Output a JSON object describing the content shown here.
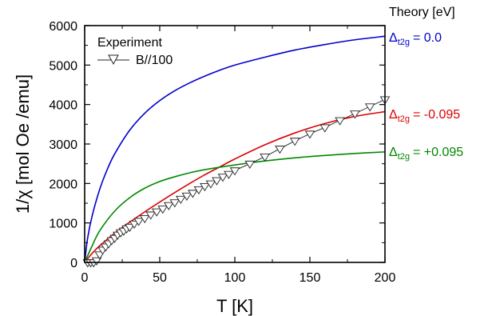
{
  "chart_data": {
    "type": "line",
    "xlabel": "T [K]",
    "ylabel": "1/χ [mol Oe /emu]",
    "xlim": [
      0,
      200
    ],
    "ylim": [
      0,
      6000
    ],
    "xticks": [
      "0",
      "50",
      "100",
      "150",
      "200"
    ],
    "yticks": [
      "0",
      "1000",
      "2000",
      "3000",
      "4000",
      "5000",
      "6000"
    ],
    "legend": {
      "title": "Experiment",
      "entry": "B//100",
      "placement": "top-left"
    },
    "theory_label": "Theory [eV]",
    "series": [
      {
        "name": "Experiment B//100",
        "kind": "marker-line",
        "marker": "open-triangle-down",
        "color": "#222222",
        "x": [
          2,
          4,
          6,
          8,
          10,
          12,
          14,
          16,
          18,
          20,
          22,
          24,
          26,
          28,
          30,
          33,
          36,
          40,
          44,
          48,
          52,
          56,
          60,
          64,
          68,
          72,
          76,
          80,
          84,
          88,
          92,
          96,
          100,
          110,
          120,
          130,
          140,
          150,
          160,
          170,
          180,
          190,
          200
        ],
        "y": [
          0,
          0,
          0,
          50,
          200,
          320,
          400,
          480,
          560,
          620,
          700,
          760,
          800,
          860,
          900,
          980,
          1050,
          1120,
          1210,
          1290,
          1360,
          1450,
          1520,
          1610,
          1690,
          1760,
          1850,
          1930,
          2000,
          2080,
          2170,
          2240,
          2330,
          2500,
          2680,
          2880,
          3080,
          3260,
          3420,
          3600,
          3770,
          3950,
          4130
        ]
      },
      {
        "name": "Δt2g = 0.0",
        "label_main": "Δ",
        "label_sub": "t2g",
        "label_value": "= 0.0",
        "color": "#0000cc",
        "x": [
          0,
          2,
          5,
          10,
          15,
          20,
          30,
          40,
          50,
          60,
          70,
          80,
          90,
          100,
          120,
          140,
          160,
          180,
          200
        ],
        "y": [
          0,
          620,
          1180,
          1850,
          2350,
          2750,
          3350,
          3780,
          4100,
          4350,
          4550,
          4720,
          4870,
          5000,
          5200,
          5380,
          5520,
          5640,
          5730
        ]
      },
      {
        "name": "Δt2g = -0.095",
        "label_main": "Δ",
        "label_sub": "t2g",
        "label_value": "=  -0.095",
        "color": "#dd0000",
        "x": [
          0,
          5,
          10,
          20,
          30,
          40,
          50,
          60,
          70,
          80,
          90,
          100,
          120,
          140,
          160,
          180,
          200
        ],
        "y": [
          0,
          230,
          420,
          740,
          1020,
          1280,
          1530,
          1770,
          2000,
          2220,
          2420,
          2620,
          2980,
          3280,
          3520,
          3700,
          3820
        ]
      },
      {
        "name": "Δt2g = +0.095",
        "label_main": "Δ",
        "label_sub": "t2g",
        "label_value": "= +0.095",
        "color": "#008800",
        "x": [
          0,
          5,
          10,
          20,
          30,
          40,
          50,
          60,
          70,
          80,
          100,
          120,
          140,
          160,
          180,
          200
        ],
        "y": [
          0,
          420,
          800,
          1300,
          1640,
          1880,
          2050,
          2170,
          2270,
          2350,
          2470,
          2570,
          2650,
          2710,
          2760,
          2800
        ]
      }
    ]
  }
}
